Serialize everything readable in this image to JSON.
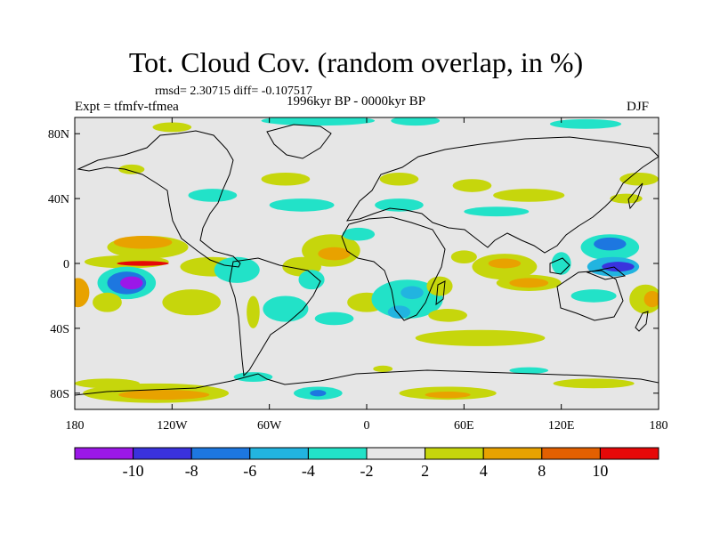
{
  "title": "Tot. Cloud Cov. (random overlap, in %)",
  "stats": "rmsd= 2.30715 diff= -0.107517",
  "experiment": "Expt = tfmfv-tfmea",
  "period": "1996kyr BP - 0000kyr BP",
  "season": "DJF",
  "axes": {
    "lat_ticks": [
      {
        "label": "80N",
        "value": 80
      },
      {
        "label": "40N",
        "value": 40
      },
      {
        "label": "0",
        "value": 0
      },
      {
        "label": "40S",
        "value": -40
      },
      {
        "label": "80S",
        "value": -80
      }
    ],
    "lon_ticks": [
      {
        "label": "180",
        "value": -180
      },
      {
        "label": "120W",
        "value": -120
      },
      {
        "label": "60W",
        "value": -60
      },
      {
        "label": "0",
        "value": 0
      },
      {
        "label": "60E",
        "value": 60
      },
      {
        "label": "120E",
        "value": 120
      },
      {
        "label": "180",
        "value": 180
      }
    ],
    "lat_range": [
      -90,
      90
    ],
    "lon_range": [
      -180,
      180
    ]
  },
  "colorbar": {
    "labels": [
      "-10",
      "-8",
      "-6",
      "-4",
      "-2",
      "2",
      "4",
      "8",
      "10"
    ],
    "colors": [
      "#9b18e8",
      "#3a32dd",
      "#1d77e0",
      "#22b4e0",
      "#22e2c8",
      "#e6e6e6",
      "#c6d60c",
      "#e8a200",
      "#e36000",
      "#e60808"
    ]
  },
  "anomalies": [
    {
      "lon": -135,
      "lat": 10,
      "rx": 25,
      "ry": 7,
      "color": "#c6d60c"
    },
    {
      "lon": -138,
      "lat": 13,
      "rx": 18,
      "ry": 4,
      "color": "#e8a200"
    },
    {
      "lon": -148,
      "lat": 1,
      "rx": 26,
      "ry": 4,
      "color": "#c6d60c"
    },
    {
      "lon": -138,
      "lat": 0,
      "rx": 16,
      "ry": 1.5,
      "color": "#e60808"
    },
    {
      "lon": -148,
      "lat": -12,
      "rx": 18,
      "ry": 10,
      "color": "#22e2c8"
    },
    {
      "lon": -148,
      "lat": -12,
      "rx": 12,
      "ry": 7,
      "color": "#1d77e0"
    },
    {
      "lon": -145,
      "lat": -12,
      "rx": 7,
      "ry": 4,
      "color": "#9b18e8"
    },
    {
      "lon": -178,
      "lat": -18,
      "rx": 7,
      "ry": 9,
      "color": "#e8a200"
    },
    {
      "lon": -160,
      "lat": -24,
      "rx": 9,
      "ry": 6,
      "color": "#c6d60c"
    },
    {
      "lon": -108,
      "lat": -24,
      "rx": 18,
      "ry": 8,
      "color": "#c6d60c"
    },
    {
      "lon": -95,
      "lat": -2,
      "rx": 20,
      "ry": 6,
      "color": "#c6d60c"
    },
    {
      "lon": -80,
      "lat": -4,
      "rx": 14,
      "ry": 8,
      "color": "#22e2c8"
    },
    {
      "lon": -40,
      "lat": -2,
      "rx": 12,
      "ry": 6,
      "color": "#c6d60c"
    },
    {
      "lon": -34,
      "lat": -10,
      "rx": 8,
      "ry": 6,
      "color": "#22e2c8"
    },
    {
      "lon": -22,
      "lat": 8,
      "rx": 18,
      "ry": 10,
      "color": "#c6d60c"
    },
    {
      "lon": -20,
      "lat": 6,
      "rx": 10,
      "ry": 4,
      "color": "#e8a200"
    },
    {
      "lon": -50,
      "lat": -28,
      "rx": 14,
      "ry": 8,
      "color": "#22e2c8"
    },
    {
      "lon": -70,
      "lat": -30,
      "rx": 4,
      "ry": 10,
      "color": "#c6d60c"
    },
    {
      "lon": -5,
      "lat": 18,
      "rx": 10,
      "ry": 4,
      "color": "#22e2c8"
    },
    {
      "lon": 0,
      "lat": -24,
      "rx": 12,
      "ry": 6,
      "color": "#c6d60c"
    },
    {
      "lon": -20,
      "lat": -34,
      "rx": 12,
      "ry": 4,
      "color": "#22e2c8"
    },
    {
      "lon": 25,
      "lat": -22,
      "rx": 22,
      "ry": 12,
      "color": "#22e2c8"
    },
    {
      "lon": 28,
      "lat": -18,
      "rx": 7,
      "ry": 4,
      "color": "#22b4e0"
    },
    {
      "lon": 20,
      "lat": -30,
      "rx": 7,
      "ry": 4,
      "color": "#22b4e0"
    },
    {
      "lon": 45,
      "lat": -14,
      "rx": 8,
      "ry": 6,
      "color": "#c6d60c"
    },
    {
      "lon": 50,
      "lat": -32,
      "rx": 12,
      "ry": 4,
      "color": "#c6d60c"
    },
    {
      "lon": 60,
      "lat": 4,
      "rx": 8,
      "ry": 4,
      "color": "#c6d60c"
    },
    {
      "lon": 85,
      "lat": -2,
      "rx": 20,
      "ry": 8,
      "color": "#c6d60c"
    },
    {
      "lon": 85,
      "lat": 0,
      "rx": 10,
      "ry": 3,
      "color": "#e8a200"
    },
    {
      "lon": 100,
      "lat": -12,
      "rx": 20,
      "ry": 5,
      "color": "#c6d60c"
    },
    {
      "lon": 100,
      "lat": -12,
      "rx": 12,
      "ry": 3,
      "color": "#e8a200"
    },
    {
      "lon": 70,
      "lat": -46,
      "rx": 40,
      "ry": 5,
      "color": "#c6d60c"
    },
    {
      "lon": 120,
      "lat": 0,
      "rx": 6,
      "ry": 7,
      "color": "#22e2c8"
    },
    {
      "lon": 150,
      "lat": 10,
      "rx": 18,
      "ry": 8,
      "color": "#22e2c8"
    },
    {
      "lon": 150,
      "lat": 12,
      "rx": 10,
      "ry": 4,
      "color": "#1d77e0"
    },
    {
      "lon": 152,
      "lat": -2,
      "rx": 16,
      "ry": 6,
      "color": "#22b4e0"
    },
    {
      "lon": 155,
      "lat": -2,
      "rx": 10,
      "ry": 3,
      "color": "#3a32dd"
    },
    {
      "lon": 140,
      "lat": -20,
      "rx": 14,
      "ry": 4,
      "color": "#22e2c8"
    },
    {
      "lon": 172,
      "lat": -22,
      "rx": 10,
      "ry": 9,
      "color": "#c6d60c"
    },
    {
      "lon": 176,
      "lat": -22,
      "rx": 5,
      "ry": 5,
      "color": "#e8a200"
    },
    {
      "lon": 100,
      "lat": 42,
      "rx": 22,
      "ry": 4,
      "color": "#c6d60c"
    },
    {
      "lon": 65,
      "lat": 48,
      "rx": 12,
      "ry": 4,
      "color": "#c6d60c"
    },
    {
      "lon": 20,
      "lat": 52,
      "rx": 12,
      "ry": 4,
      "color": "#c6d60c"
    },
    {
      "lon": -50,
      "lat": 52,
      "rx": 15,
      "ry": 4,
      "color": "#c6d60c"
    },
    {
      "lon": -95,
      "lat": 42,
      "rx": 15,
      "ry": 4,
      "color": "#22e2c8"
    },
    {
      "lon": -40,
      "lat": 36,
      "rx": 20,
      "ry": 4,
      "color": "#22e2c8"
    },
    {
      "lon": 20,
      "lat": 36,
      "rx": 15,
      "ry": 4,
      "color": "#22e2c8"
    },
    {
      "lon": 80,
      "lat": 32,
      "rx": 20,
      "ry": 3,
      "color": "#22e2c8"
    },
    {
      "lon": -30,
      "lat": 88,
      "rx": 35,
      "ry": 3,
      "color": "#22e2c8"
    },
    {
      "lon": 30,
      "lat": 88,
      "rx": 15,
      "ry": 3,
      "color": "#22e2c8"
    },
    {
      "lon": 135,
      "lat": 86,
      "rx": 22,
      "ry": 3,
      "color": "#22e2c8"
    },
    {
      "lon": -120,
      "lat": 84,
      "rx": 12,
      "ry": 3,
      "color": "#c6d60c"
    },
    {
      "lon": 168,
      "lat": 52,
      "rx": 12,
      "ry": 4,
      "color": "#c6d60c"
    },
    {
      "lon": -145,
      "lat": 58,
      "rx": 8,
      "ry": 3,
      "color": "#c6d60c"
    },
    {
      "lon": 160,
      "lat": 40,
      "rx": 10,
      "ry": 3,
      "color": "#c6d60c"
    },
    {
      "lon": -130,
      "lat": -80,
      "rx": 45,
      "ry": 6,
      "color": "#c6d60c"
    },
    {
      "lon": -125,
      "lat": -81,
      "rx": 28,
      "ry": 3,
      "color": "#e8a200"
    },
    {
      "lon": -160,
      "lat": -74,
      "rx": 20,
      "ry": 3,
      "color": "#c6d60c"
    },
    {
      "lon": -70,
      "lat": -70,
      "rx": 12,
      "ry": 3,
      "color": "#22e2c8"
    },
    {
      "lon": -30,
      "lat": -80,
      "rx": 15,
      "ry": 4,
      "color": "#22e2c8"
    },
    {
      "lon": -30,
      "lat": -80,
      "rx": 5,
      "ry": 2,
      "color": "#1d77e0"
    },
    {
      "lon": 10,
      "lat": -65,
      "rx": 6,
      "ry": 2,
      "color": "#c6d60c"
    },
    {
      "lon": 50,
      "lat": -80,
      "rx": 30,
      "ry": 4,
      "color": "#c6d60c"
    },
    {
      "lon": 50,
      "lat": -81,
      "rx": 14,
      "ry": 2,
      "color": "#e8a200"
    },
    {
      "lon": 140,
      "lat": -74,
      "rx": 25,
      "ry": 3,
      "color": "#c6d60c"
    },
    {
      "lon": 100,
      "lat": -66,
      "rx": 12,
      "ry": 2,
      "color": "#22e2c8"
    }
  ]
}
